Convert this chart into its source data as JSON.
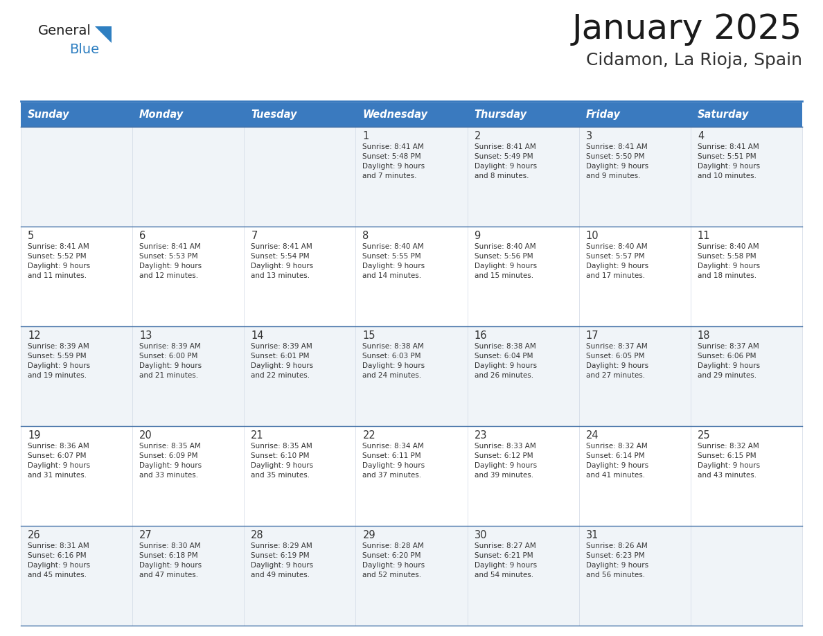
{
  "title": "January 2025",
  "subtitle": "Cidamon, La Rioja, Spain",
  "header_color": "#3a7abf",
  "header_text_color": "#ffffff",
  "weekdays": [
    "Sunday",
    "Monday",
    "Tuesday",
    "Wednesday",
    "Thursday",
    "Friday",
    "Saturday"
  ],
  "row_bg_even": "#f0f4f8",
  "row_bg_odd": "#ffffff",
  "cell_border_color": "#4472a8",
  "text_color": "#333333",
  "logo_general_color": "#1a1a1a",
  "logo_blue_color": "#2e7fc1",
  "calendar_data": [
    [
      {
        "day": null,
        "info": null
      },
      {
        "day": null,
        "info": null
      },
      {
        "day": null,
        "info": null
      },
      {
        "day": 1,
        "info": "Sunrise: 8:41 AM\nSunset: 5:48 PM\nDaylight: 9 hours\nand 7 minutes."
      },
      {
        "day": 2,
        "info": "Sunrise: 8:41 AM\nSunset: 5:49 PM\nDaylight: 9 hours\nand 8 minutes."
      },
      {
        "day": 3,
        "info": "Sunrise: 8:41 AM\nSunset: 5:50 PM\nDaylight: 9 hours\nand 9 minutes."
      },
      {
        "day": 4,
        "info": "Sunrise: 8:41 AM\nSunset: 5:51 PM\nDaylight: 9 hours\nand 10 minutes."
      }
    ],
    [
      {
        "day": 5,
        "info": "Sunrise: 8:41 AM\nSunset: 5:52 PM\nDaylight: 9 hours\nand 11 minutes."
      },
      {
        "day": 6,
        "info": "Sunrise: 8:41 AM\nSunset: 5:53 PM\nDaylight: 9 hours\nand 12 minutes."
      },
      {
        "day": 7,
        "info": "Sunrise: 8:41 AM\nSunset: 5:54 PM\nDaylight: 9 hours\nand 13 minutes."
      },
      {
        "day": 8,
        "info": "Sunrise: 8:40 AM\nSunset: 5:55 PM\nDaylight: 9 hours\nand 14 minutes."
      },
      {
        "day": 9,
        "info": "Sunrise: 8:40 AM\nSunset: 5:56 PM\nDaylight: 9 hours\nand 15 minutes."
      },
      {
        "day": 10,
        "info": "Sunrise: 8:40 AM\nSunset: 5:57 PM\nDaylight: 9 hours\nand 17 minutes."
      },
      {
        "day": 11,
        "info": "Sunrise: 8:40 AM\nSunset: 5:58 PM\nDaylight: 9 hours\nand 18 minutes."
      }
    ],
    [
      {
        "day": 12,
        "info": "Sunrise: 8:39 AM\nSunset: 5:59 PM\nDaylight: 9 hours\nand 19 minutes."
      },
      {
        "day": 13,
        "info": "Sunrise: 8:39 AM\nSunset: 6:00 PM\nDaylight: 9 hours\nand 21 minutes."
      },
      {
        "day": 14,
        "info": "Sunrise: 8:39 AM\nSunset: 6:01 PM\nDaylight: 9 hours\nand 22 minutes."
      },
      {
        "day": 15,
        "info": "Sunrise: 8:38 AM\nSunset: 6:03 PM\nDaylight: 9 hours\nand 24 minutes."
      },
      {
        "day": 16,
        "info": "Sunrise: 8:38 AM\nSunset: 6:04 PM\nDaylight: 9 hours\nand 26 minutes."
      },
      {
        "day": 17,
        "info": "Sunrise: 8:37 AM\nSunset: 6:05 PM\nDaylight: 9 hours\nand 27 minutes."
      },
      {
        "day": 18,
        "info": "Sunrise: 8:37 AM\nSunset: 6:06 PM\nDaylight: 9 hours\nand 29 minutes."
      }
    ],
    [
      {
        "day": 19,
        "info": "Sunrise: 8:36 AM\nSunset: 6:07 PM\nDaylight: 9 hours\nand 31 minutes."
      },
      {
        "day": 20,
        "info": "Sunrise: 8:35 AM\nSunset: 6:09 PM\nDaylight: 9 hours\nand 33 minutes."
      },
      {
        "day": 21,
        "info": "Sunrise: 8:35 AM\nSunset: 6:10 PM\nDaylight: 9 hours\nand 35 minutes."
      },
      {
        "day": 22,
        "info": "Sunrise: 8:34 AM\nSunset: 6:11 PM\nDaylight: 9 hours\nand 37 minutes."
      },
      {
        "day": 23,
        "info": "Sunrise: 8:33 AM\nSunset: 6:12 PM\nDaylight: 9 hours\nand 39 minutes."
      },
      {
        "day": 24,
        "info": "Sunrise: 8:32 AM\nSunset: 6:14 PM\nDaylight: 9 hours\nand 41 minutes."
      },
      {
        "day": 25,
        "info": "Sunrise: 8:32 AM\nSunset: 6:15 PM\nDaylight: 9 hours\nand 43 minutes."
      }
    ],
    [
      {
        "day": 26,
        "info": "Sunrise: 8:31 AM\nSunset: 6:16 PM\nDaylight: 9 hours\nand 45 minutes."
      },
      {
        "day": 27,
        "info": "Sunrise: 8:30 AM\nSunset: 6:18 PM\nDaylight: 9 hours\nand 47 minutes."
      },
      {
        "day": 28,
        "info": "Sunrise: 8:29 AM\nSunset: 6:19 PM\nDaylight: 9 hours\nand 49 minutes."
      },
      {
        "day": 29,
        "info": "Sunrise: 8:28 AM\nSunset: 6:20 PM\nDaylight: 9 hours\nand 52 minutes."
      },
      {
        "day": 30,
        "info": "Sunrise: 8:27 AM\nSunset: 6:21 PM\nDaylight: 9 hours\nand 54 minutes."
      },
      {
        "day": 31,
        "info": "Sunrise: 8:26 AM\nSunset: 6:23 PM\nDaylight: 9 hours\nand 56 minutes."
      },
      {
        "day": null,
        "info": null
      }
    ]
  ]
}
